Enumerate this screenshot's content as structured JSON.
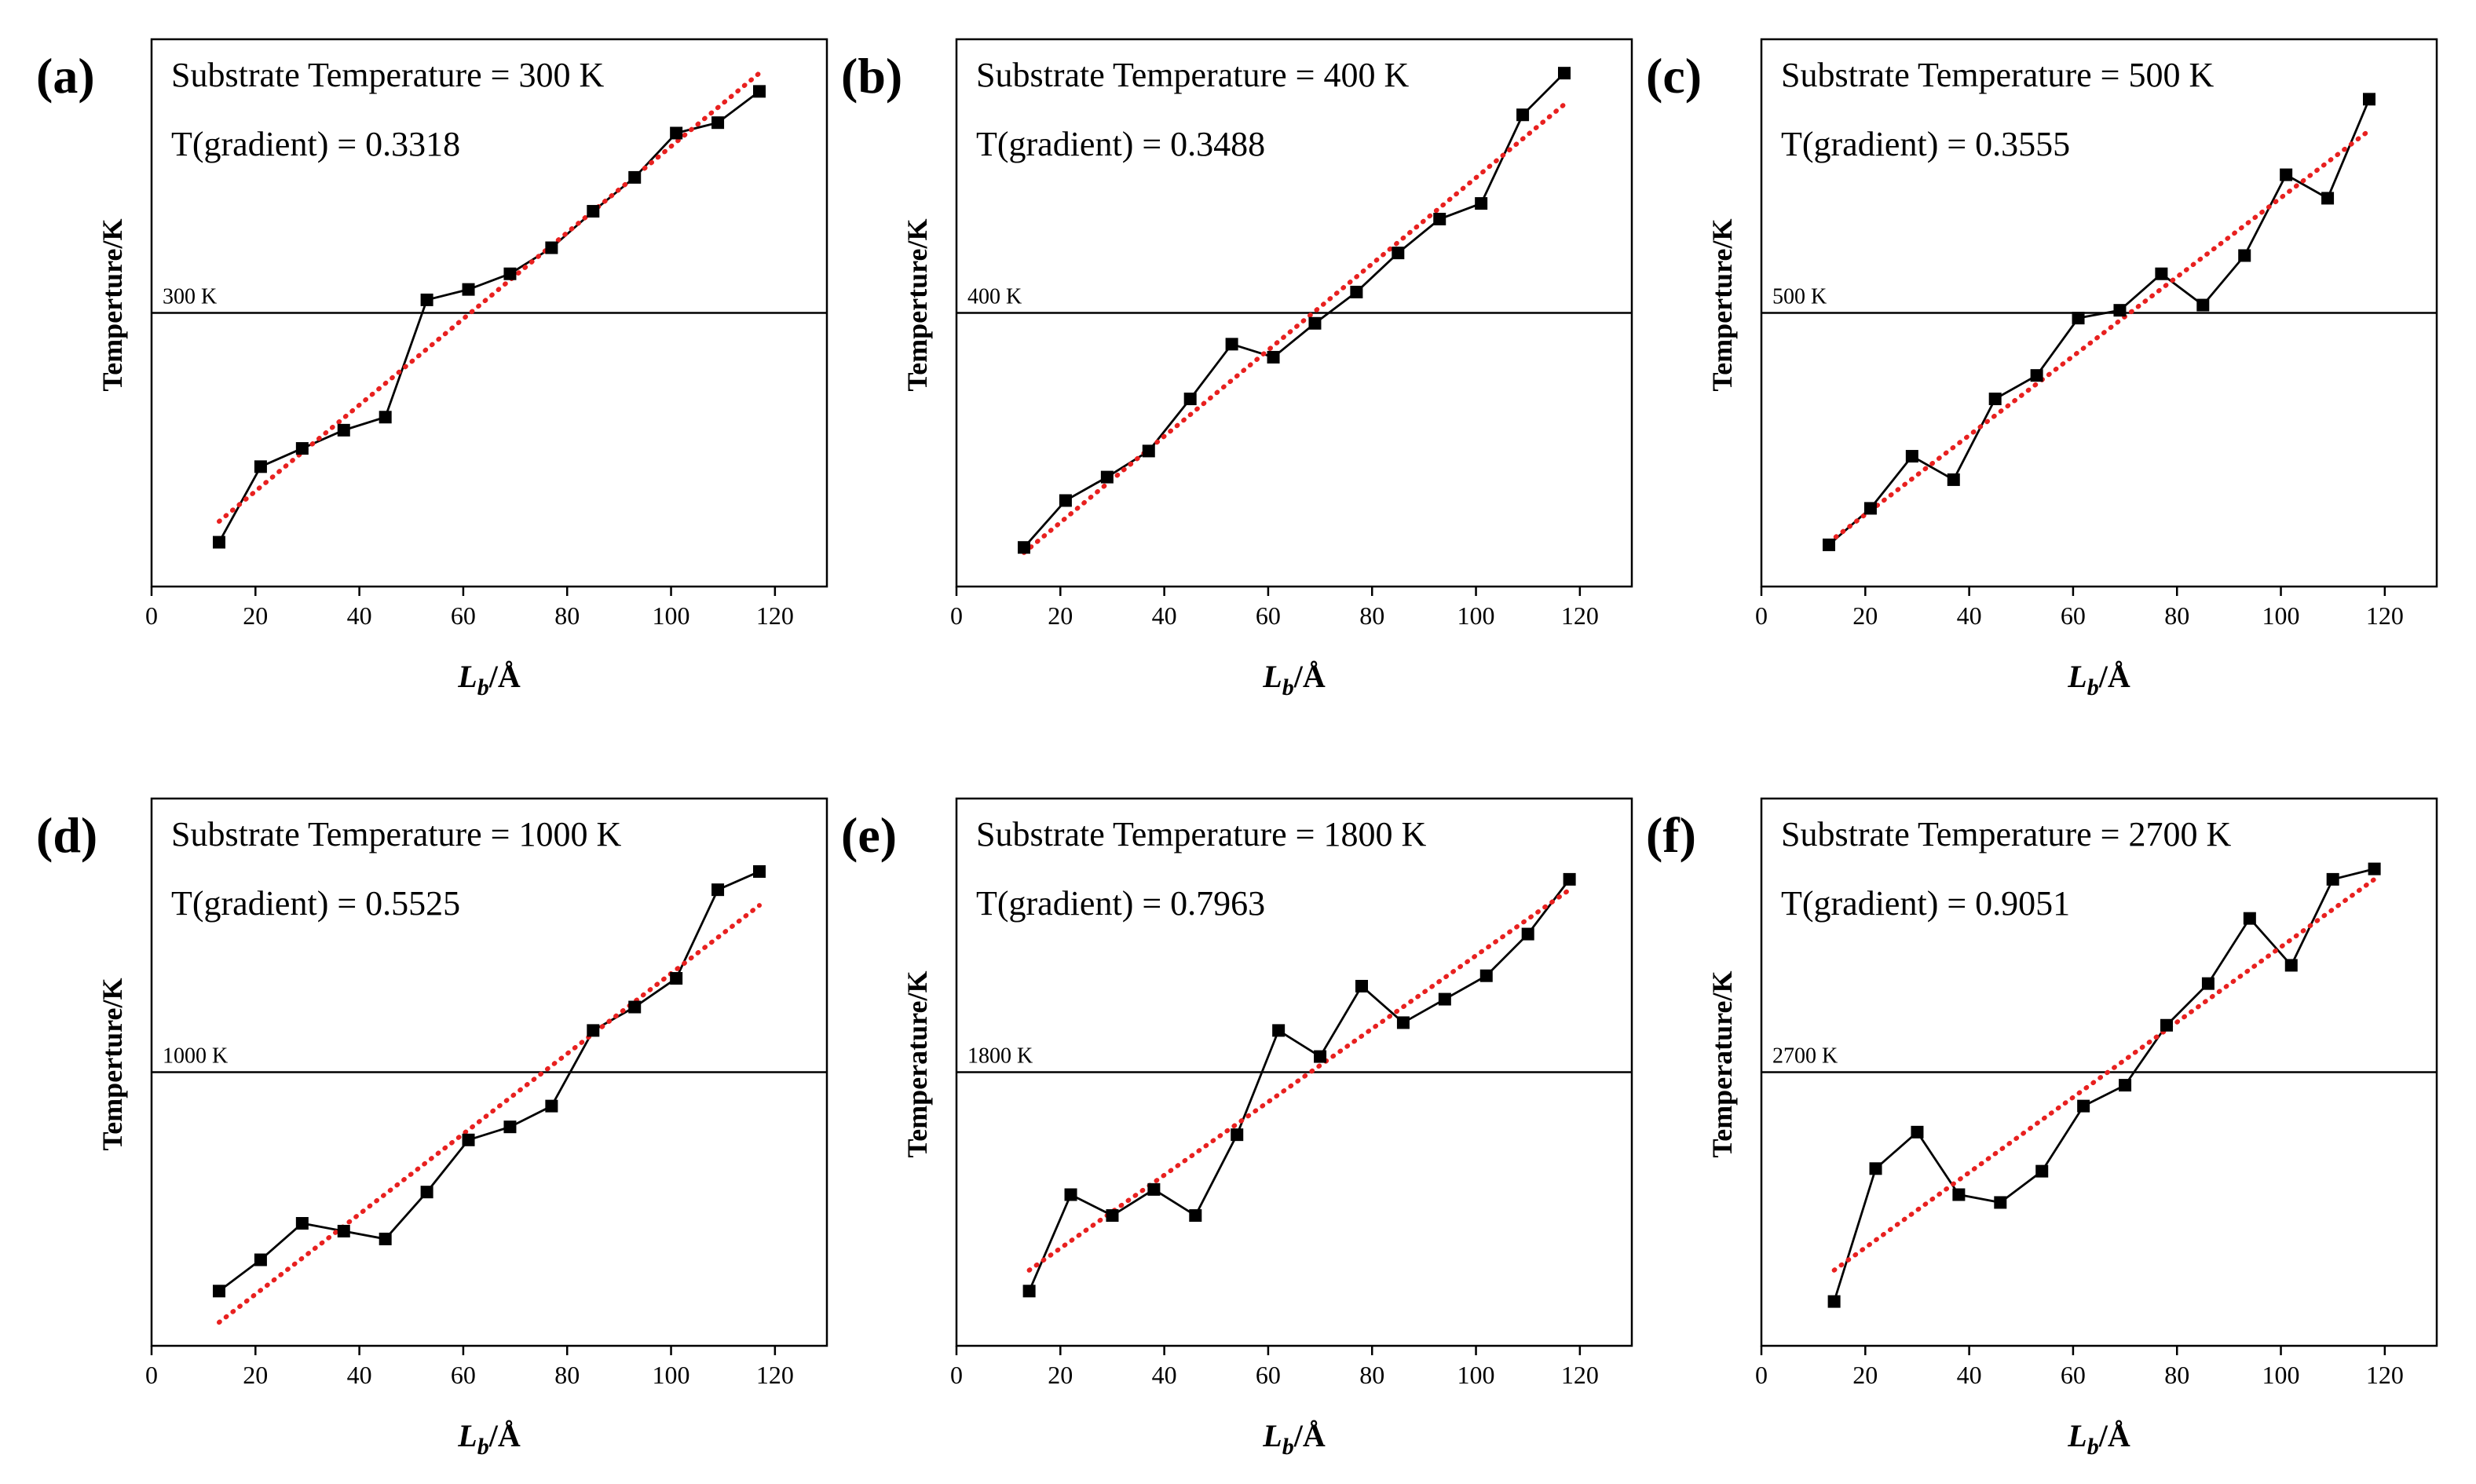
{
  "colors": {
    "data_line": "#000000",
    "marker": "#000000",
    "fit_line": "#e8201f",
    "frame": "#000000",
    "background": "#ffffff"
  },
  "axis_labels": {
    "xlabel_italic": "L",
    "xlabel_sub": "b",
    "xlabel_unit": "/Å",
    "ylabel": "Temperture/K",
    "ylabel_alt": "Temperature/K"
  },
  "chart_data": [
    {
      "panel": "(a)",
      "type": "line",
      "title": "Substrate Temperature = 300 K",
      "gradient_text": "T(gradient)  = 0.3318",
      "reference_label": "300 K",
      "reference_value": 300,
      "ylabel": "Temperture/K",
      "xlim": [
        0,
        130
      ],
      "ylim": [
        -1.05,
        1.05
      ],
      "xticks": [
        0,
        20,
        40,
        60,
        80,
        100,
        120
      ],
      "x": [
        13,
        21,
        29,
        37,
        45,
        53,
        61,
        69,
        77,
        85,
        93,
        101,
        109,
        117
      ],
      "values": [
        -0.88,
        -0.59,
        -0.52,
        -0.45,
        -0.4,
        0.05,
        0.09,
        0.15,
        0.25,
        0.39,
        0.52,
        0.69,
        0.73,
        0.85
      ],
      "fit": {
        "x": [
          13,
          117
        ],
        "y": [
          -0.8,
          0.92
        ]
      }
    },
    {
      "panel": "(b)",
      "type": "line",
      "title": "Substrate Temperature = 400 K",
      "gradient_text": "T(gradient)  = 0.3488",
      "reference_label": "400 K",
      "reference_value": 400,
      "ylabel": "Temperture/K",
      "xlim": [
        0,
        130
      ],
      "ylim": [
        -1.05,
        1.05
      ],
      "xticks": [
        0,
        20,
        40,
        60,
        80,
        100,
        120
      ],
      "x": [
        13,
        21,
        29,
        37,
        45,
        53,
        61,
        69,
        77,
        85,
        93,
        101,
        109,
        117
      ],
      "values": [
        -0.9,
        -0.72,
        -0.63,
        -0.53,
        -0.33,
        -0.12,
        -0.17,
        -0.04,
        0.08,
        0.23,
        0.36,
        0.42,
        0.76,
        0.92
      ],
      "fit": {
        "x": [
          13,
          117
        ],
        "y": [
          -0.92,
          0.8
        ]
      }
    },
    {
      "panel": "(c)",
      "type": "line",
      "title": "Substrate Temperature = 500 K",
      "gradient_text": "T(gradient)  = 0.3555",
      "reference_label": "500 K",
      "reference_value": 500,
      "ylabel": "Temperture/K",
      "xlim": [
        0,
        130
      ],
      "ylim": [
        -1.05,
        1.05
      ],
      "xticks": [
        0,
        20,
        40,
        60,
        80,
        100,
        120
      ],
      "x": [
        13,
        21,
        29,
        37,
        45,
        53,
        61,
        69,
        77,
        85,
        93,
        101,
        109,
        117
      ],
      "values": [
        -0.89,
        -0.75,
        -0.55,
        -0.64,
        -0.33,
        -0.24,
        -0.02,
        0.01,
        0.15,
        0.03,
        0.22,
        0.53,
        0.44,
        0.82
      ],
      "fit": {
        "x": [
          13,
          117
        ],
        "y": [
          -0.88,
          0.7
        ]
      }
    },
    {
      "panel": "(d)",
      "type": "line",
      "title": "Substrate Temperature = 1000 K",
      "gradient_text": "T(gradient)  = 0.5525",
      "reference_label": "1000 K",
      "reference_value": 1000,
      "ylabel": "Temperture/K",
      "xlim": [
        0,
        130
      ],
      "ylim": [
        -1.05,
        1.05
      ],
      "xticks": [
        0,
        20,
        40,
        60,
        80,
        100,
        120
      ],
      "x": [
        13,
        21,
        29,
        37,
        45,
        53,
        61,
        69,
        77,
        85,
        93,
        101,
        109,
        117
      ],
      "values": [
        -0.84,
        -0.72,
        -0.58,
        -0.61,
        -0.64,
        -0.46,
        -0.26,
        -0.21,
        -0.13,
        0.16,
        0.25,
        0.36,
        0.7,
        0.77
      ],
      "fit": {
        "x": [
          13,
          117
        ],
        "y": [
          -0.96,
          0.64
        ]
      }
    },
    {
      "panel": "(e)",
      "type": "line",
      "title": "Substrate Temperature = 1800 K",
      "gradient_text": "T(gradient)  = 0.7963",
      "reference_label": "1800 K",
      "reference_value": 1800,
      "ylabel": "Temperature/K",
      "xlim": [
        0,
        130
      ],
      "ylim": [
        -1.05,
        1.05
      ],
      "xticks": [
        0,
        20,
        40,
        60,
        80,
        100,
        120
      ],
      "x": [
        14,
        22,
        30,
        38,
        46,
        54,
        62,
        70,
        78,
        86,
        94,
        102,
        110,
        118
      ],
      "values": [
        -0.84,
        -0.47,
        -0.55,
        -0.45,
        -0.55,
        -0.24,
        0.16,
        0.06,
        0.33,
        0.19,
        0.28,
        0.37,
        0.53,
        0.74
      ],
      "fit": {
        "x": [
          14,
          118
        ],
        "y": [
          -0.76,
          0.7
        ]
      }
    },
    {
      "panel": "(f)",
      "type": "line",
      "title": "Substrate Temperature = 2700 K",
      "gradient_text": "T(gradient)  = 0.9051",
      "reference_label": "2700 K",
      "reference_value": 2700,
      "ylabel": "Temperature/K",
      "xlim": [
        0,
        130
      ],
      "ylim": [
        -1.05,
        1.05
      ],
      "xticks": [
        0,
        20,
        40,
        60,
        80,
        100,
        120
      ],
      "x": [
        14,
        22,
        30,
        38,
        46,
        54,
        62,
        70,
        78,
        86,
        94,
        102,
        110,
        118
      ],
      "values": [
        -0.88,
        -0.37,
        -0.23,
        -0.47,
        -0.5,
        -0.38,
        -0.13,
        -0.05,
        0.18,
        0.34,
        0.59,
        0.41,
        0.74,
        0.78
      ],
      "fit": {
        "x": [
          14,
          118
        ],
        "y": [
          -0.76,
          0.74
        ]
      }
    }
  ]
}
